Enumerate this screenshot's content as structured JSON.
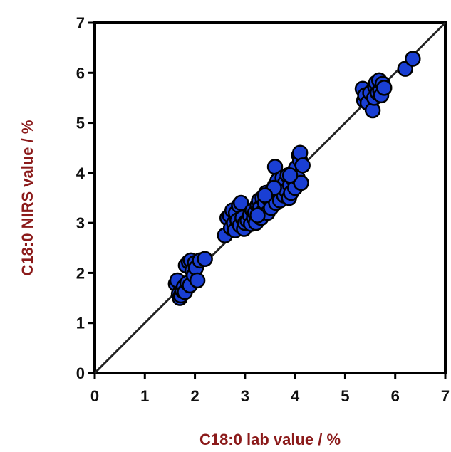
{
  "chart_data": {
    "type": "scatter",
    "xlabel": "C18:0 lab value / %",
    "ylabel": "C18:0 NIRS value / %",
    "xlim": [
      0,
      7
    ],
    "ylim": [
      0,
      7
    ],
    "xticks": [
      "0",
      "1",
      "2",
      "3",
      "4",
      "5",
      "6",
      "7"
    ],
    "yticks": [
      "0",
      "1",
      "2",
      "3",
      "4",
      "5",
      "6",
      "7"
    ],
    "grid": false,
    "legend": "none",
    "reference_line": {
      "x": [
        0,
        7
      ],
      "y": [
        0,
        7
      ]
    },
    "series": [
      {
        "points": [
          [
            1.62,
            1.78
          ],
          [
            1.65,
            1.85
          ],
          [
            1.68,
            1.58
          ],
          [
            1.7,
            1.5
          ],
          [
            1.72,
            1.55
          ],
          [
            1.75,
            1.65
          ],
          [
            1.78,
            1.72
          ],
          [
            1.8,
            1.62
          ],
          [
            1.82,
            2.15
          ],
          [
            1.85,
            1.8
          ],
          [
            1.88,
            2.22
          ],
          [
            1.9,
            1.75
          ],
          [
            1.92,
            2.25
          ],
          [
            1.95,
            2.05
          ],
          [
            1.98,
            1.95
          ],
          [
            2.0,
            2.2
          ],
          [
            2.02,
            2.1
          ],
          [
            2.05,
            1.85
          ],
          [
            2.1,
            2.25
          ],
          [
            2.2,
            2.28
          ],
          [
            2.6,
            2.75
          ],
          [
            2.65,
            3.1
          ],
          [
            2.7,
            3.15
          ],
          [
            2.72,
            2.9
          ],
          [
            2.75,
            3.25
          ],
          [
            2.78,
            3.0
          ],
          [
            2.8,
            2.85
          ],
          [
            2.82,
            3.2
          ],
          [
            2.85,
            3.05
          ],
          [
            2.88,
            3.35
          ],
          [
            2.9,
            2.95
          ],
          [
            2.92,
            3.4
          ],
          [
            2.95,
            3.1
          ],
          [
            2.98,
            2.88
          ],
          [
            3.0,
            3.0
          ],
          [
            3.05,
            3.05
          ],
          [
            3.1,
            3.15
          ],
          [
            3.12,
            2.98
          ],
          [
            3.15,
            3.25
          ],
          [
            3.18,
            3.1
          ],
          [
            3.2,
            3.2
          ],
          [
            3.22,
            3.0
          ],
          [
            3.25,
            3.35
          ],
          [
            3.28,
            3.45
          ],
          [
            3.3,
            3.3
          ],
          [
            3.32,
            3.1
          ],
          [
            3.35,
            3.5
          ],
          [
            3.38,
            3.25
          ],
          [
            3.4,
            3.4
          ],
          [
            3.42,
            3.6
          ],
          [
            3.45,
            3.2
          ],
          [
            3.48,
            3.55
          ],
          [
            3.5,
            3.45
          ],
          [
            3.52,
            3.3
          ],
          [
            3.55,
            3.65
          ],
          [
            3.58,
            3.5
          ],
          [
            3.6,
            3.75
          ],
          [
            3.6,
            4.12
          ],
          [
            3.62,
            3.4
          ],
          [
            3.65,
            3.85
          ],
          [
            3.68,
            3.6
          ],
          [
            3.7,
            3.45
          ],
          [
            3.72,
            3.7
          ],
          [
            3.75,
            3.9
          ],
          [
            3.78,
            3.55
          ],
          [
            3.8,
            3.8
          ],
          [
            3.82,
            3.65
          ],
          [
            3.85,
            3.95
          ],
          [
            3.88,
            3.5
          ],
          [
            3.9,
            3.75
          ],
          [
            3.92,
            3.6
          ],
          [
            3.95,
            4.0
          ],
          [
            3.98,
            3.85
          ],
          [
            4.0,
            3.7
          ],
          [
            4.02,
            4.1
          ],
          [
            4.05,
            3.9
          ],
          [
            4.08,
            4.35
          ],
          [
            4.1,
            4.25
          ],
          [
            4.1,
            4.4
          ],
          [
            4.12,
            3.8
          ],
          [
            4.15,
            4.15
          ],
          [
            3.58,
            3.7
          ],
          [
            3.4,
            3.55
          ],
          [
            3.25,
            3.15
          ],
          [
            3.9,
            3.95
          ],
          [
            5.35,
            5.68
          ],
          [
            5.38,
            5.45
          ],
          [
            5.4,
            5.55
          ],
          [
            5.45,
            5.4
          ],
          [
            5.5,
            5.6
          ],
          [
            5.55,
            5.25
          ],
          [
            5.58,
            5.5
          ],
          [
            5.6,
            5.72
          ],
          [
            5.62,
            5.8
          ],
          [
            5.65,
            5.6
          ],
          [
            5.68,
            5.85
          ],
          [
            5.7,
            5.65
          ],
          [
            5.72,
            5.55
          ],
          [
            5.75,
            5.78
          ],
          [
            5.78,
            5.7
          ],
          [
            6.2,
            6.08
          ],
          [
            6.35,
            6.28
          ]
        ]
      }
    ]
  },
  "colors": {
    "marker_fill": "#1a3fd4",
    "marker_stroke": "#000000",
    "axis_title": "#8b1a1a",
    "axes": "#000000",
    "reference_line": "#222222"
  }
}
